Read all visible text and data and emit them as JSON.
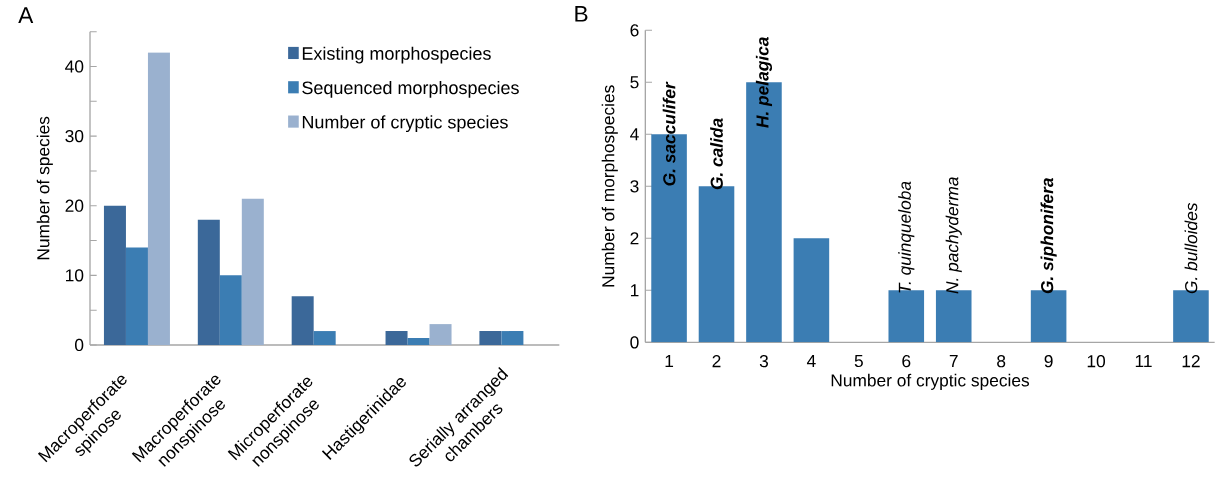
{
  "chart_data": [
    {
      "type": "bar",
      "title": "A",
      "ylabel": "Number of species",
      "categories": [
        "Macroperforate spinose",
        "Macroperforate nonspinose",
        "Microperforate nonspinose",
        "Hastigerinidae",
        "Serially arranged chambers"
      ],
      "series": [
        {
          "name": "Existing morphospecies",
          "color": "#3b6899",
          "values": [
            20,
            18,
            7,
            2,
            2
          ]
        },
        {
          "name": "Sequenced morphospecies",
          "color": "#3b7db3",
          "values": [
            14,
            10,
            2,
            1,
            2
          ]
        },
        {
          "name": "Number of cryptic species",
          "color": "#9ab1cf",
          "values": [
            42,
            21,
            0,
            3,
            0
          ]
        }
      ],
      "ylim": [
        0,
        45
      ],
      "yticks": [
        0,
        {
          "value": 5,
          "label": null
        },
        10,
        {
          "value": 15,
          "label": null
        },
        20,
        {
          "value": 25,
          "label": null
        },
        30,
        {
          "value": 35,
          "label": null
        },
        40,
        {
          "value": 45,
          "label": null
        }
      ],
      "legend": "top right",
      "grid": false
    },
    {
      "type": "bar",
      "title": "B",
      "xlabel": "Number of cryptic species",
      "ylabel": "Number of morphospecies",
      "x": [
        1,
        2,
        3,
        4,
        5,
        6,
        7,
        8,
        9,
        10,
        11,
        12
      ],
      "values": [
        4,
        3,
        5,
        2,
        0,
        1,
        1,
        0,
        1,
        0,
        0,
        1
      ],
      "color": "#3b7db3",
      "xlim": [
        0.5,
        12.5
      ],
      "xticks": [
        1,
        2,
        3,
        4,
        5,
        6,
        7,
        8,
        9,
        10,
        11,
        12
      ],
      "ylim": [
        0,
        6
      ],
      "yticks": [
        0,
        1,
        2,
        3,
        4,
        5,
        6
      ],
      "annotations": [
        {
          "text": "**G. sacculifer**",
          "x": 1,
          "y": 4
        },
        {
          "text": "**G. calida**",
          "x": 2,
          "y": 3
        },
        {
          "text": "**H. pelagica**",
          "x": 3,
          "y": 5
        },
        {
          "text": "T. quinqueloba",
          "x": 6,
          "y": 1
        },
        {
          "text": "N. pachyderma",
          "x": 7,
          "y": 1
        },
        {
          "text": "**G. siphonifera**",
          "x": 9,
          "y": 1
        },
        {
          "text": "G. bulloides",
          "x": 12,
          "y": 1
        }
      ],
      "grid": false
    }
  ]
}
